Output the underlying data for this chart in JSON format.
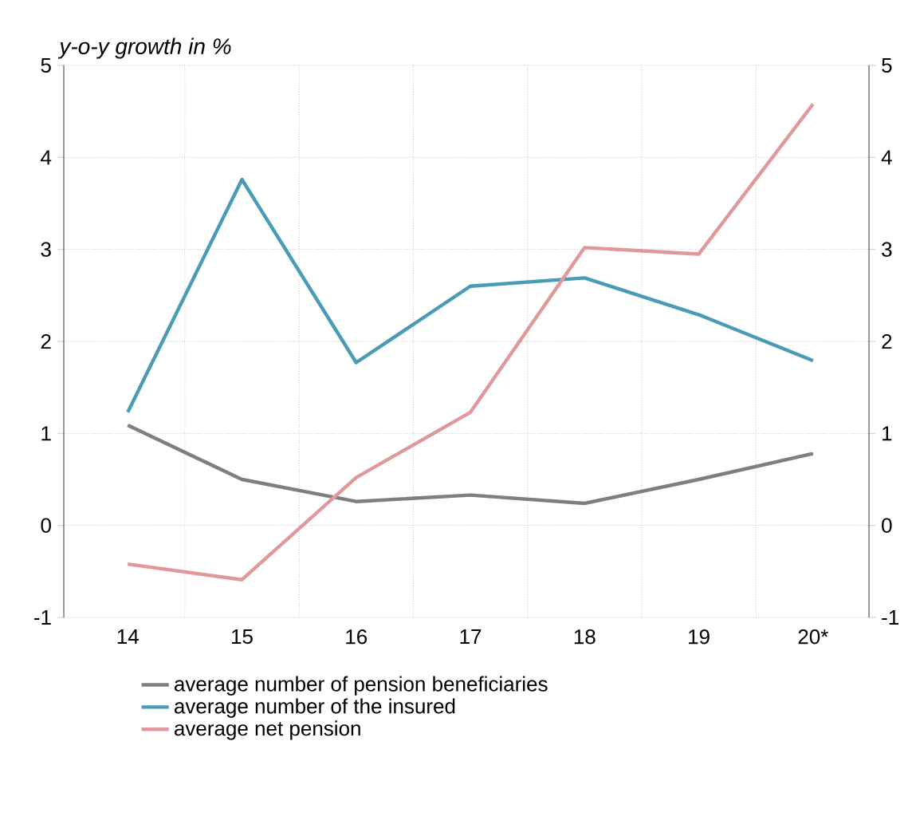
{
  "chart_data": {
    "type": "line",
    "ylabel": "y-o-y growth in %",
    "categories": [
      "14",
      "15",
      "16",
      "17",
      "18",
      "19",
      "20*"
    ],
    "series": [
      {
        "name": "average number of pension beneficiaries",
        "color": "#7f7f7f",
        "values": [
          1.09,
          0.5,
          0.26,
          0.33,
          0.24,
          0.5,
          0.78
        ]
      },
      {
        "name": "average number of the insured",
        "color": "#4a9ab8",
        "values": [
          1.23,
          3.76,
          1.77,
          2.6,
          2.69,
          2.29,
          1.79
        ]
      },
      {
        "name": "average net pension",
        "color": "#e0999a",
        "values": [
          -0.42,
          -0.59,
          0.52,
          1.23,
          3.02,
          2.95,
          4.58
        ]
      }
    ],
    "ylim": [
      -1,
      5
    ],
    "yticks": [
      -1,
      0,
      1,
      2,
      3,
      4,
      5
    ],
    "y2lim": [
      -1,
      5
    ],
    "y2ticks": [
      -1,
      0,
      1,
      2,
      3,
      4,
      5
    ],
    "grid": true,
    "legend": "bottom",
    "marker": "none",
    "line_style": "solid"
  }
}
